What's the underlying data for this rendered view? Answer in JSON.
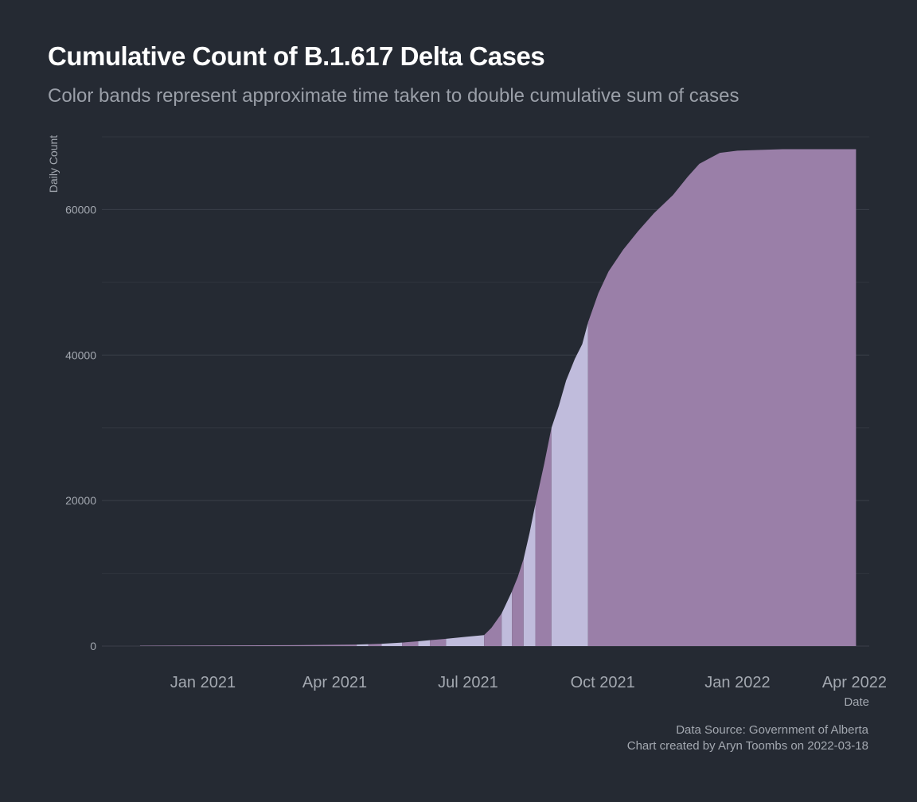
{
  "chart_data": {
    "type": "area",
    "title": "Cumulative Count of B.1.617 Delta Cases",
    "subtitle": "Color bands represent approximate time taken to double cumulative sum of cases",
    "xlabel": "Date",
    "ylabel": "Daily Count",
    "xlim": [
      "2020-10-24",
      "2022-04-01"
    ],
    "ylim": [
      0,
      70000
    ],
    "x_ticks": [
      {
        "date": "2021-01-01",
        "label": "Jan 2021"
      },
      {
        "date": "2021-04-01",
        "label": "Apr 2021"
      },
      {
        "date": "2021-07-01",
        "label": "Jul 2021"
      },
      {
        "date": "2021-10-01",
        "label": "Oct 2021"
      },
      {
        "date": "2022-01-01",
        "label": "Jan 2022"
      },
      {
        "date": "2022-04-01",
        "label": "Apr 2022"
      }
    ],
    "y_ticks": [
      {
        "value": 0,
        "label": "0"
      },
      {
        "value": 20000,
        "label": "20000"
      },
      {
        "value": 40000,
        "label": "40000"
      },
      {
        "value": 60000,
        "label": "60000"
      }
    ],
    "grid": true,
    "colors": {
      "band_a": "#9a7fa8",
      "band_b": "#c0bcdc"
    },
    "bands": [
      {
        "start": "2020-11-19",
        "end": "2021-04-16",
        "color": "#9a7fa8"
      },
      {
        "start": "2021-04-16",
        "end": "2021-04-24",
        "color": "#c0bcdc"
      },
      {
        "start": "2021-04-24",
        "end": "2021-05-03",
        "color": "#9a7fa8"
      },
      {
        "start": "2021-05-03",
        "end": "2021-05-17",
        "color": "#c0bcdc"
      },
      {
        "start": "2021-05-17",
        "end": "2021-05-28",
        "color": "#9a7fa8"
      },
      {
        "start": "2021-05-28",
        "end": "2021-06-05",
        "color": "#c0bcdc"
      },
      {
        "start": "2021-06-05",
        "end": "2021-06-16",
        "color": "#9a7fa8"
      },
      {
        "start": "2021-06-16",
        "end": "2021-07-12",
        "color": "#c0bcdc"
      },
      {
        "start": "2021-07-12",
        "end": "2021-07-24",
        "color": "#9a7fa8"
      },
      {
        "start": "2021-07-24",
        "end": "2021-07-31",
        "color": "#c0bcdc"
      },
      {
        "start": "2021-07-31",
        "end": "2021-08-08",
        "color": "#9a7fa8"
      },
      {
        "start": "2021-08-08",
        "end": "2021-08-16",
        "color": "#c0bcdc"
      },
      {
        "start": "2021-08-16",
        "end": "2021-08-27",
        "color": "#9a7fa8"
      },
      {
        "start": "2021-08-27",
        "end": "2021-09-21",
        "color": "#c0bcdc"
      },
      {
        "start": "2021-09-21",
        "end": "2022-03-23",
        "color": "#9a7fa8"
      }
    ],
    "series": [
      {
        "x": [
          "2020-11-19",
          "2021-01-01",
          "2021-03-01",
          "2021-04-16",
          "2021-05-03",
          "2021-05-17",
          "2021-05-28",
          "2021-06-05",
          "2021-06-16",
          "2021-07-01",
          "2021-07-12",
          "2021-07-17",
          "2021-07-24",
          "2021-07-31",
          "2021-08-04",
          "2021-08-08",
          "2021-08-12",
          "2021-08-16",
          "2021-08-22",
          "2021-08-27",
          "2021-09-01",
          "2021-09-06",
          "2021-09-12",
          "2021-09-17",
          "2021-09-21",
          "2021-09-28",
          "2021-10-05",
          "2021-10-15",
          "2021-10-25",
          "2021-11-05",
          "2021-11-18",
          "2021-11-28",
          "2021-12-06",
          "2021-12-20",
          "2022-01-01",
          "2022-01-15",
          "2022-02-01",
          "2022-03-23"
        ],
        "y": [
          50,
          80,
          120,
          200,
          320,
          480,
          650,
          800,
          1000,
          1300,
          1500,
          2500,
          4500,
          7500,
          9500,
          12000,
          15500,
          19500,
          25000,
          30000,
          33000,
          36500,
          39500,
          41500,
          44500,
          48500,
          51500,
          54500,
          57000,
          59500,
          62000,
          64500,
          66300,
          67800,
          68100,
          68200,
          68300,
          68300
        ]
      }
    ]
  }
}
